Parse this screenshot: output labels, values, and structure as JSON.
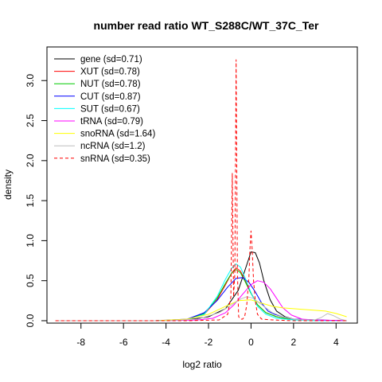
{
  "chart_data": {
    "type": "line",
    "title": "number read ratio WT_S288C/WT_37C_Ter",
    "xlabel": "log2 ratio",
    "ylabel": "density",
    "xlim": [
      -9.6,
      5.0
    ],
    "ylim": [
      -0.03,
      3.42
    ],
    "xticks": [
      -8,
      -6,
      -4,
      -2,
      0,
      2,
      4
    ],
    "yticks": [
      0.0,
      0.5,
      1.0,
      1.5,
      2.0,
      2.5,
      3.0
    ],
    "xtick_labels": [
      "-8",
      "-6",
      "-4",
      "-2",
      "0",
      "2",
      "4"
    ],
    "ytick_labels": [
      "0.0",
      "0.5",
      "1.0",
      "1.5",
      "2.0",
      "2.5",
      "3.0"
    ],
    "grid": false,
    "legend_position": "top-left",
    "series": [
      {
        "name": "gene (sd=0.71)",
        "color": "#000000",
        "dash": false,
        "x": [
          -9.2,
          -4.5,
          -3.0,
          -2.0,
          -1.2,
          -0.6,
          -0.2,
          0.0,
          0.2,
          0.4,
          0.6,
          0.9,
          1.2,
          1.6,
          2.0,
          3.0,
          4.0,
          4.5
        ],
        "y": [
          0,
          0,
          0.01,
          0.05,
          0.15,
          0.38,
          0.7,
          0.86,
          0.85,
          0.72,
          0.5,
          0.26,
          0.12,
          0.05,
          0.02,
          0.01,
          0,
          0
        ]
      },
      {
        "name": "XUT (sd=0.78)",
        "color": "#ff0000",
        "dash": false,
        "x": [
          -9.2,
          -4.5,
          -3.0,
          -2.2,
          -1.6,
          -1.2,
          -0.9,
          -0.7,
          -0.5,
          -0.3,
          0.0,
          0.3,
          0.7,
          1.2,
          1.8,
          2.5,
          3.5,
          4.5
        ],
        "y": [
          0,
          0,
          0.01,
          0.08,
          0.26,
          0.45,
          0.6,
          0.66,
          0.62,
          0.52,
          0.35,
          0.2,
          0.1,
          0.05,
          0.02,
          0.01,
          0,
          0
        ]
      },
      {
        "name": "NUT (sd=0.78)",
        "color": "#00cc00",
        "dash": false,
        "x": [
          -9.2,
          -4.5,
          -3.0,
          -2.2,
          -1.6,
          -1.2,
          -0.9,
          -0.7,
          -0.5,
          -0.3,
          0.0,
          0.3,
          0.7,
          1.2,
          1.8,
          2.5,
          3.5,
          4.5
        ],
        "y": [
          0,
          0,
          0.01,
          0.09,
          0.28,
          0.47,
          0.6,
          0.64,
          0.6,
          0.5,
          0.34,
          0.2,
          0.1,
          0.05,
          0.02,
          0.01,
          0,
          0
        ]
      },
      {
        "name": "CUT (sd=0.87)",
        "color": "#0000ff",
        "dash": false,
        "x": [
          -9.2,
          -4.5,
          -3.0,
          -2.2,
          -1.6,
          -1.1,
          -0.7,
          -0.4,
          -0.1,
          0.2,
          0.5,
          0.8,
          1.1,
          1.5,
          2.0,
          3.0,
          4.5
        ],
        "y": [
          0,
          0,
          0.02,
          0.1,
          0.25,
          0.42,
          0.53,
          0.54,
          0.48,
          0.36,
          0.22,
          0.12,
          0.08,
          0.05,
          0.02,
          0.01,
          0
        ]
      },
      {
        "name": "SUT (sd=0.67)",
        "color": "#00ffff",
        "dash": false,
        "x": [
          -9.2,
          -4.5,
          -3.0,
          -2.2,
          -1.6,
          -1.2,
          -0.9,
          -0.7,
          -0.5,
          -0.3,
          0.0,
          0.3,
          0.7,
          1.2,
          2.0,
          3.0,
          4.5
        ],
        "y": [
          0,
          0,
          0.01,
          0.08,
          0.3,
          0.52,
          0.66,
          0.71,
          0.67,
          0.55,
          0.35,
          0.18,
          0.08,
          0.03,
          0.01,
          0,
          0
        ]
      },
      {
        "name": "tRNA (sd=0.79)",
        "color": "#ff00ff",
        "dash": false,
        "x": [
          -9.2,
          -4.0,
          -2.5,
          -1.8,
          -1.2,
          -0.8,
          -0.4,
          0.0,
          0.3,
          0.6,
          0.9,
          1.2,
          1.5,
          1.9,
          2.4,
          3.0,
          4.5
        ],
        "y": [
          0,
          0,
          0.01,
          0.03,
          0.1,
          0.2,
          0.33,
          0.45,
          0.5,
          0.48,
          0.4,
          0.28,
          0.16,
          0.07,
          0.02,
          0.01,
          0
        ]
      },
      {
        "name": "snoRNA (sd=1.64)",
        "color": "#ffff00",
        "dash": false,
        "x": [
          -9.2,
          -4.5,
          -3.0,
          -2.0,
          -1.2,
          -0.6,
          0.0,
          0.5,
          1.0,
          1.5,
          2.0,
          2.5,
          3.0,
          3.5,
          4.0,
          4.5
        ],
        "y": [
          0,
          0,
          0.02,
          0.08,
          0.18,
          0.25,
          0.26,
          0.22,
          0.18,
          0.16,
          0.15,
          0.14,
          0.13,
          0.12,
          0.09,
          0.05
        ]
      },
      {
        "name": "ncRNA (sd=1.2)",
        "color": "#bebebe",
        "dash": false,
        "x": [
          -9.2,
          -4.0,
          -2.5,
          -1.5,
          -0.9,
          -0.5,
          -0.2,
          0.1,
          0.5,
          1.0,
          1.5,
          2.0,
          2.5,
          3.0,
          3.3,
          3.6,
          3.9,
          4.2,
          4.5
        ],
        "y": [
          0,
          0,
          0.02,
          0.1,
          0.2,
          0.27,
          0.3,
          0.28,
          0.2,
          0.1,
          0.05,
          0.02,
          0.01,
          0.01,
          0.04,
          0.09,
          0.06,
          0.02,
          0
        ]
      },
      {
        "name": "snRNA (sd=0.35)",
        "color": "#ff0000",
        "dash": true,
        "x": [
          -9.2,
          -3.0,
          -1.5,
          -1.1,
          -0.95,
          -0.88,
          -0.82,
          -0.76,
          -0.7,
          -0.64,
          -0.58,
          -0.5,
          -0.4,
          -0.3,
          -0.2,
          -0.1,
          -0.05,
          0.0,
          0.05,
          0.12,
          0.2,
          0.3,
          0.5,
          1.0,
          2.0,
          4.5
        ],
        "y": [
          0,
          0,
          0.01,
          0.08,
          0.3,
          1.84,
          0.3,
          0.6,
          3.26,
          0.6,
          0.05,
          0.02,
          0.02,
          0.05,
          0.2,
          0.55,
          0.9,
          1.12,
          0.9,
          0.5,
          0.25,
          0.08,
          0.02,
          0.01,
          0,
          0
        ]
      }
    ]
  }
}
